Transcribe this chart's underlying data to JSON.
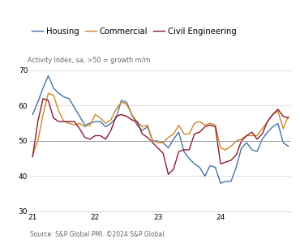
{
  "title": "",
  "subtitle": "Activity Index, sa, >50 = growth m/m",
  "legend_labels": [
    "Housing",
    "Commercial",
    "Civil Engineering"
  ],
  "legend_colors": [
    "#4472a8",
    "#cc8822",
    "#8b1a2e"
  ],
  "source_text": "Source: S&P Global PMI. ©2024 S&P Global.",
  "ylim": [
    30,
    70
  ],
  "yticks": [
    30,
    40,
    50,
    60,
    70
  ],
  "background_color": "#ffffff",
  "grid_color": "#d0d0d0",
  "hline_color": "#999999",
  "housing": [
    57.5,
    61.0,
    65.0,
    68.5,
    65.0,
    63.5,
    62.5,
    62.0,
    59.5,
    57.0,
    54.5,
    55.0,
    55.5,
    55.5,
    54.0,
    55.0,
    56.5,
    61.5,
    61.0,
    57.5,
    54.5,
    53.0,
    54.0,
    50.0,
    50.0,
    49.5,
    48.0,
    50.5,
    52.5,
    47.0,
    45.0,
    43.5,
    42.5,
    40.0,
    43.0,
    42.5,
    38.0,
    38.5,
    38.5,
    42.5,
    48.0,
    49.5,
    47.5,
    47.0,
    50.5,
    52.5,
    54.0,
    55.0,
    49.5,
    48.5
  ],
  "commercial": [
    46.0,
    50.0,
    57.5,
    63.5,
    63.0,
    58.5,
    55.5,
    55.0,
    54.5,
    55.0,
    54.0,
    54.5,
    57.5,
    56.5,
    55.0,
    56.0,
    59.0,
    61.0,
    60.5,
    57.5,
    55.5,
    54.0,
    54.5,
    50.0,
    49.5,
    49.5,
    51.0,
    52.0,
    54.5,
    52.0,
    52.0,
    55.0,
    55.5,
    54.5,
    55.0,
    54.5,
    48.0,
    47.5,
    48.5,
    50.0,
    50.5,
    51.5,
    51.5,
    51.5,
    53.5,
    55.5,
    57.5,
    58.5,
    53.5,
    57.0
  ],
  "civil_engineering": [
    45.5,
    55.5,
    62.0,
    61.5,
    56.5,
    55.5,
    55.5,
    55.5,
    55.5,
    53.5,
    51.0,
    50.5,
    51.5,
    51.5,
    50.5,
    53.0,
    57.0,
    57.5,
    57.0,
    56.0,
    55.5,
    52.0,
    51.0,
    49.5,
    48.0,
    46.5,
    40.5,
    42.0,
    47.0,
    47.5,
    47.5,
    52.0,
    52.5,
    54.0,
    54.5,
    54.0,
    43.5,
    44.0,
    44.5,
    46.0,
    50.0,
    51.5,
    52.5,
    50.5,
    52.0,
    55.5,
    57.5,
    59.0,
    57.0,
    56.5
  ],
  "n_months": 50,
  "xtick_positions": [
    0,
    12,
    24,
    36,
    48
  ],
  "xtick_labels": [
    "21",
    "22",
    "23",
    "24",
    ""
  ]
}
